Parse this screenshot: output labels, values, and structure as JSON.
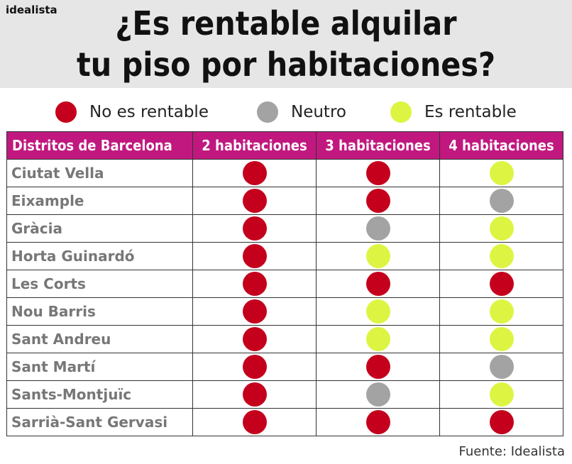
{
  "brand": "idealista",
  "title_line1": "¿Es rentable alquilar",
  "title_line2": "tu piso por habitaciones?",
  "colors": {
    "no_rentable": "#c4001c",
    "neutro": "#a3a3a3",
    "rentable": "#ddf542",
    "header_bg": "#c0187f"
  },
  "source": "Fuente: Idealista",
  "chart_data": {
    "type": "table",
    "legend": [
      {
        "key": "no_rentable",
        "label": "No es rentable"
      },
      {
        "key": "neutro",
        "label": "Neutro"
      },
      {
        "key": "rentable",
        "label": "Es rentable"
      }
    ],
    "columns": [
      "Distritos de Barcelona",
      "2 habitaciones",
      "3 habitaciones",
      "4 habitaciones"
    ],
    "rows": [
      {
        "district": "Ciutat Vella",
        "values": [
          "no_rentable",
          "no_rentable",
          "rentable"
        ]
      },
      {
        "district": "Eixample",
        "values": [
          "no_rentable",
          "no_rentable",
          "neutro"
        ]
      },
      {
        "district": "Gràcia",
        "values": [
          "no_rentable",
          "neutro",
          "rentable"
        ]
      },
      {
        "district": "Horta Guinardó",
        "values": [
          "no_rentable",
          "rentable",
          "rentable"
        ]
      },
      {
        "district": "Les Corts",
        "values": [
          "no_rentable",
          "no_rentable",
          "no_rentable"
        ]
      },
      {
        "district": "Nou Barris",
        "values": [
          "no_rentable",
          "rentable",
          "rentable"
        ]
      },
      {
        "district": "Sant Andreu",
        "values": [
          "no_rentable",
          "rentable",
          "rentable"
        ]
      },
      {
        "district": "Sant Martí",
        "values": [
          "no_rentable",
          "no_rentable",
          "neutro"
        ]
      },
      {
        "district": "Sants-Montjuïc",
        "values": [
          "no_rentable",
          "neutro",
          "rentable"
        ]
      },
      {
        "district": "Sarrià-Sant Gervasi",
        "values": [
          "no_rentable",
          "no_rentable",
          "no_rentable"
        ]
      }
    ]
  }
}
